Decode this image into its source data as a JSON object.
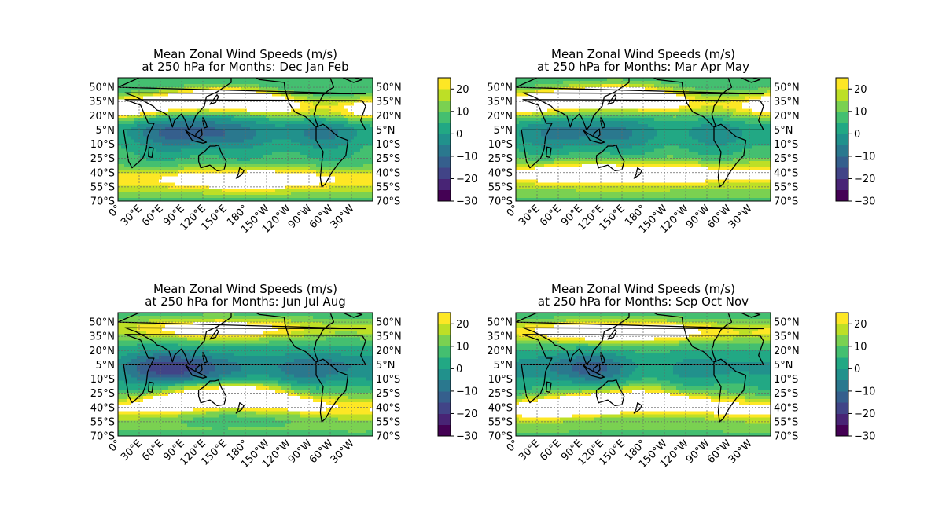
{
  "figure": {
    "panels": [
      {
        "title_line1": "Mean Zonal Wind Speeds (m/s)",
        "title_line2": "at 250 hPa for Months: Dec Jan Feb",
        "map": "map-djf-image"
      },
      {
        "title_line1": "Mean Zonal Wind Speeds (m/s)",
        "title_line2": "at 250 hPa for Months: Mar Apr May",
        "map": "map-mam-image"
      },
      {
        "title_line1": "Mean Zonal Wind Speeds (m/s)",
        "title_line2": "at 250 hPa for Months: Jun Jul Aug",
        "map": "map-jja-image"
      },
      {
        "title_line1": "Mean Zonal Wind Speeds (m/s)",
        "title_line2": "at 250 hPa for Months: Sep Oct Nov",
        "map": "map-son-image"
      }
    ]
  },
  "chart_data": {
    "type": "heatmap",
    "kind": "filled contour maps",
    "lat_ticks": [
      "50°N",
      "35°N",
      "20°N",
      "5°N",
      "10°S",
      "25°S",
      "40°S",
      "55°S",
      "70°S"
    ],
    "lon_ticks": [
      "0°",
      "30°E",
      "60°E",
      "90°E",
      "120°E",
      "150°E",
      "180°",
      "150°W",
      "120°W",
      "90°W",
      "60°W",
      "30°W"
    ],
    "lat_values": [
      50,
      35,
      20,
      5,
      -10,
      -25,
      -40,
      -55,
      -70
    ],
    "lon_values": [
      0,
      30,
      60,
      90,
      120,
      150,
      180,
      210,
      240,
      270,
      300,
      330
    ],
    "colorbar": {
      "ticks": [
        "20",
        "10",
        "0",
        "−10",
        "−20",
        "−30"
      ],
      "tick_values": [
        20,
        10,
        0,
        -10,
        -20,
        -30
      ],
      "range": [
        -30,
        25
      ],
      "levels": [
        -30,
        -25,
        -20,
        -15,
        -10,
        -5,
        0,
        5,
        10,
        15,
        20,
        25
      ],
      "colors": [
        "#440154",
        "#482475",
        "#414487",
        "#355f8d",
        "#2a788e",
        "#21918c",
        "#22a884",
        "#44bf70",
        "#7ad151",
        "#bddf26",
        "#fde725"
      ],
      "above_max_color": "#ffffff"
    },
    "grid": true,
    "colormap": "viridis"
  }
}
